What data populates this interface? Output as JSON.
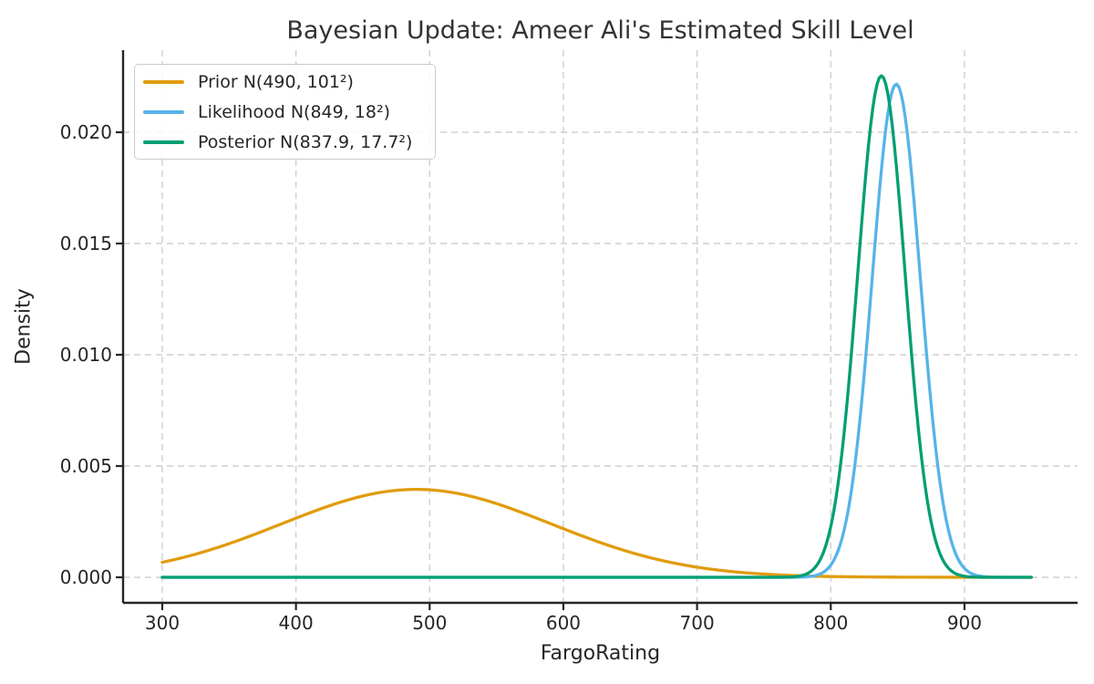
{
  "chart_data": {
    "type": "line",
    "title": "Bayesian Update: Ameer Ali's Estimated Skill Level",
    "xlabel": "FargoRating",
    "ylabel": "Density",
    "xlim": [
      270.7,
      984.6
    ],
    "ylim": [
      -0.001148,
      0.023689
    ],
    "x_ticks": [
      300,
      400,
      500,
      600,
      700,
      800,
      900
    ],
    "x_tick_labels": [
      "300",
      "400",
      "500",
      "600",
      "700",
      "800",
      "900"
    ],
    "y_ticks": [
      0.0,
      0.005,
      0.01,
      0.015,
      0.02
    ],
    "y_tick_labels": [
      "0.000",
      "0.005",
      "0.010",
      "0.015",
      "0.020"
    ],
    "grid": true,
    "grid_style": "dashed",
    "legend_position": "upper left",
    "background_color": "#ffffff",
    "text_color": "#262626",
    "grid_color": "#cfcfcf",
    "spine_color": "#262626",
    "series": [
      {
        "id": "prior",
        "name": "Prior N(490, 101²)",
        "distribution": "normal",
        "mean": 490,
        "std": 101,
        "peak_density": 0.00395,
        "x_range": [
          300,
          950
        ],
        "color": "#E09C0D"
      },
      {
        "id": "likelihood",
        "name": "Likelihood N(849, 18²)",
        "distribution": "normal",
        "mean": 849,
        "std": 18,
        "peak_density": 0.02216,
        "x_range": [
          300,
          950
        ],
        "color": "#56B4E9"
      },
      {
        "id": "posterior",
        "name": "Posterior N(837.9, 17.7²)",
        "distribution": "normal",
        "mean": 837.9,
        "std": 17.7,
        "peak_density": 0.02254,
        "x_range": [
          300,
          950
        ],
        "color": "#029E73"
      }
    ]
  }
}
